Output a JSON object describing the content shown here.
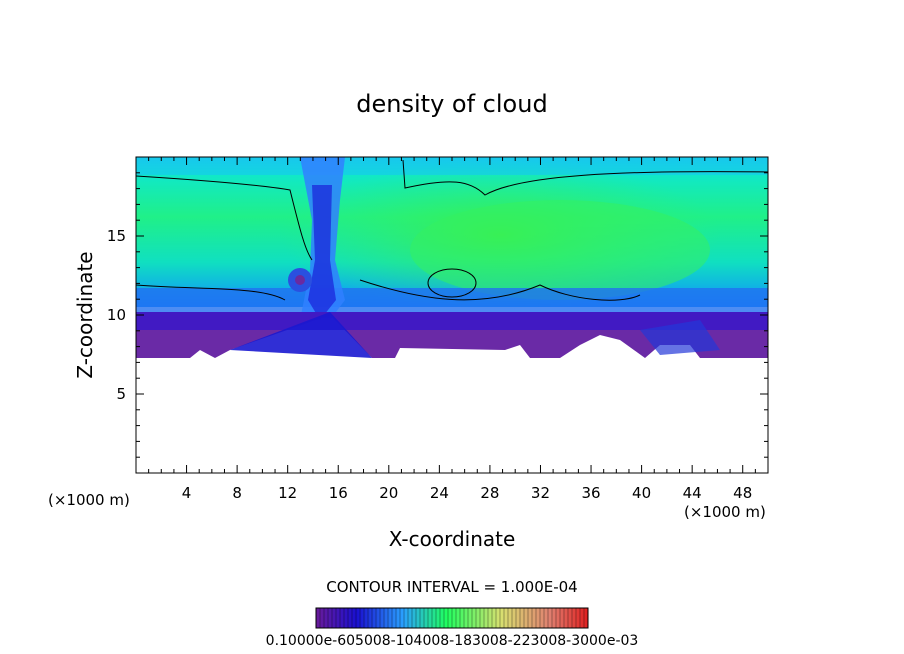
{
  "chart_data": {
    "type": "heatmap",
    "title": "density of cloud",
    "xlabel": "X-coordinate",
    "ylabel": "Z-coordinate",
    "x_unit_left": "(×1000 m)",
    "x_unit_right": "(×1000 m)",
    "xlim": [
      0,
      50
    ],
    "ylim": [
      0,
      20
    ],
    "x_ticks": [
      4,
      8,
      12,
      16,
      20,
      24,
      28,
      32,
      36,
      40,
      44,
      48
    ],
    "y_ticks": [
      5,
      10,
      15
    ],
    "contour_interval_label": "CONTOUR INTERVAL = 1.000E-04",
    "colorbar_labels_text": "0.10000e-605008-104008-183008-223008-3000e-03",
    "colors": {
      "empty": "#ffffff",
      "low": "#551a99",
      "mid_low": "#1a10d0",
      "mid": "#00e0e0",
      "high": "#30f070"
    },
    "regions": [
      {
        "name": "upper diffuse cloud",
        "x": [
          0,
          50
        ],
        "z": [
          11.5,
          19.5
        ],
        "value": "mid"
      },
      {
        "name": "core high-density area",
        "x": [
          17,
          40
        ],
        "z": [
          11,
          18.5
        ],
        "value": "high"
      },
      {
        "name": "updraft column",
        "x": [
          12.5,
          16.5
        ],
        "z": [
          10,
          19.5
        ],
        "value": "mid_low"
      },
      {
        "name": "lower cloud base",
        "x": [
          0,
          50
        ],
        "z": [
          7.3,
          10
        ],
        "value": "low"
      }
    ]
  }
}
